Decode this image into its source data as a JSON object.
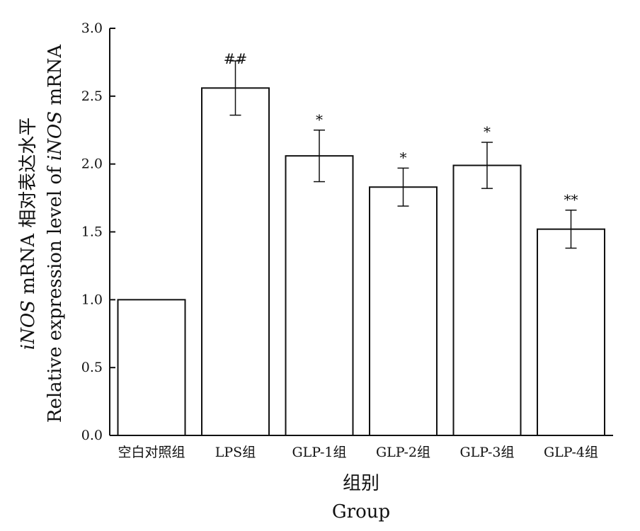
{
  "chart_data": {
    "type": "bar",
    "categories": [
      "空白对照组",
      "LPS组",
      "GLP-1组",
      "GLP-2组",
      "GLP-3组",
      "GLP-4组"
    ],
    "values": [
      1.0,
      2.56,
      2.06,
      1.83,
      1.99,
      1.52
    ],
    "error": [
      0,
      0.2,
      0.19,
      0.14,
      0.17,
      0.14
    ],
    "significance": [
      "",
      "##",
      "*",
      "*",
      "*",
      "**"
    ],
    "ylim": [
      0,
      3.0
    ],
    "yticks": [
      0.0,
      0.5,
      1.0,
      1.5,
      2.0,
      2.5,
      3.0
    ],
    "ytick_labels": [
      "0.0",
      "0.5",
      "1.0",
      "1.5",
      "2.0",
      "2.5",
      "3.0"
    ],
    "xlabel_cn": "组别",
    "xlabel_en": "Group",
    "ylabel_cn": {
      "gene": "iNOS",
      "rest": " mRNA 相对表达水平"
    },
    "ylabel_en": {
      "prefix": "Relative expression level of ",
      "gene": "iNOS",
      "suffix": " mRNA"
    },
    "bar_fill": "#ffffff",
    "bar_stroke": "#111111",
    "grid": false,
    "legend": "none"
  }
}
